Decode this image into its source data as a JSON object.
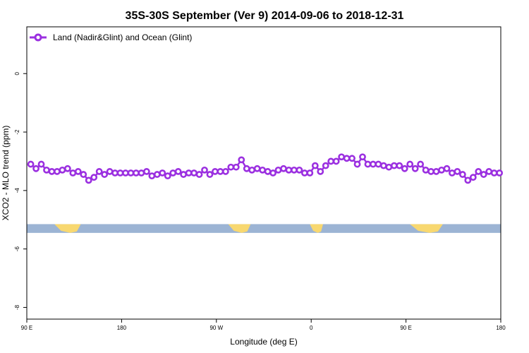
{
  "chart_data": {
    "type": "line",
    "title": "35S-30S September (Ver 9)   2014-09-06 to 2018-12-31",
    "xlabel": "Longitude (deg E)",
    "ylabel": "XCO2 - MLO trend (ppm)",
    "xlim": [
      90,
      450
    ],
    "ylim": [
      -8.4,
      1.6
    ],
    "x_ticks": [
      {
        "value": 90,
        "label": "90 E"
      },
      {
        "value": 162,
        "label": "180"
      },
      {
        "value": 234,
        "label": "90 W"
      },
      {
        "value": 306,
        "label": "0"
      },
      {
        "value": 378,
        "label": "90 E"
      },
      {
        "value": 450,
        "label": "180"
      }
    ],
    "y_ticks": [
      {
        "value": 0,
        "label": "0"
      },
      {
        "value": -2,
        "label": "-2"
      },
      {
        "value": -4,
        "label": "-4"
      },
      {
        "value": -6,
        "label": "-6"
      },
      {
        "value": -8,
        "label": "-8"
      }
    ],
    "grid": false,
    "legend_position": "top-left",
    "series": [
      {
        "name": "Land (Nadir&Glint) and Ocean (Glint)",
        "color": "#9b30e0",
        "x": [
          93,
          97,
          101,
          105,
          109,
          113,
          117,
          121,
          125,
          129,
          133,
          137,
          141,
          145,
          149,
          153,
          157,
          161,
          165,
          169,
          173,
          177,
          181,
          185,
          189,
          193,
          197,
          201,
          205,
          209,
          213,
          217,
          221,
          225,
          229,
          233,
          237,
          241,
          245,
          249,
          253,
          257,
          261,
          265,
          269,
          273,
          277,
          281,
          285,
          289,
          293,
          297,
          301,
          305,
          309,
          313,
          317,
          321,
          325,
          329,
          333,
          337,
          341,
          345,
          349,
          353,
          357,
          361,
          365,
          369,
          373,
          377,
          381,
          385,
          389,
          393,
          397,
          401,
          405,
          409,
          413,
          417,
          421,
          425,
          429,
          433,
          437,
          441,
          445,
          449
        ],
        "values": [
          -3.1,
          -3.25,
          -3.1,
          -3.3,
          -3.35,
          -3.35,
          -3.3,
          -3.25,
          -3.4,
          -3.35,
          -3.45,
          -3.65,
          -3.55,
          -3.35,
          -3.45,
          -3.35,
          -3.4,
          -3.4,
          -3.4,
          -3.4,
          -3.4,
          -3.4,
          -3.35,
          -3.5,
          -3.45,
          -3.4,
          -3.5,
          -3.4,
          -3.35,
          -3.45,
          -3.4,
          -3.4,
          -3.45,
          -3.3,
          -3.45,
          -3.35,
          -3.35,
          -3.35,
          -3.2,
          -3.2,
          -2.95,
          -3.25,
          -3.3,
          -3.25,
          -3.3,
          -3.35,
          -3.4,
          -3.3,
          -3.25,
          -3.3,
          -3.3,
          -3.3,
          -3.4,
          -3.4,
          -3.15,
          -3.35,
          -3.15,
          -3.0,
          -3.0,
          -2.85,
          -2.9,
          -2.9,
          -3.1,
          -2.85,
          -3.1,
          -3.1,
          -3.1,
          -3.15,
          -3.2,
          -3.15,
          -3.15,
          -3.25,
          -3.1,
          -3.25,
          -3.1,
          -3.3,
          -3.35,
          -3.35,
          -3.3,
          -3.25,
          -3.4,
          -3.35,
          -3.45,
          -3.65,
          -3.55,
          -3.35,
          -3.45,
          -3.35,
          -3.4,
          -3.4
        ]
      }
    ],
    "map_band": {
      "y_top": -5.15,
      "y_bottom": -5.45,
      "ocean_color": "#9cb4d4",
      "land_color": "#f8d870",
      "land_segments": [
        [
          111,
          131
        ],
        [
          243,
          260
        ],
        [
          305,
          315
        ],
        [
          381,
          406
        ]
      ]
    }
  }
}
